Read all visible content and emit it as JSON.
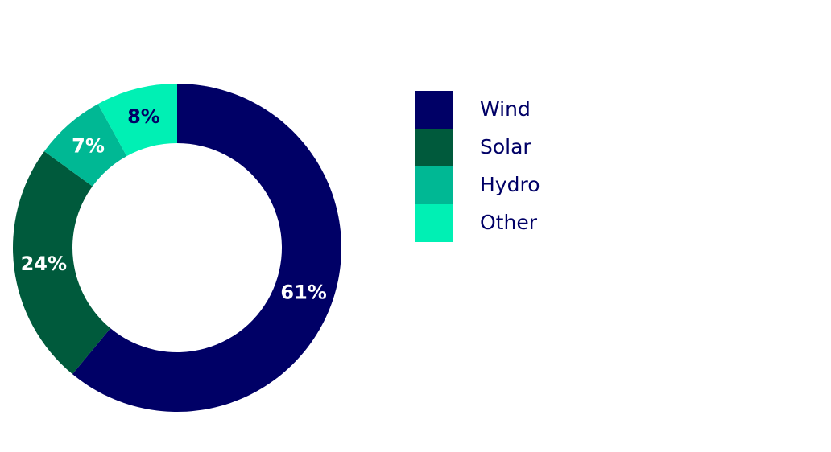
{
  "chart_data": {
    "type": "donut",
    "categories": [
      "Wind",
      "Solar",
      "Hydro",
      "Other"
    ],
    "values": [
      61,
      24,
      7,
      8
    ],
    "value_labels": [
      "61%",
      "24%",
      "7%",
      "8%"
    ],
    "colors": [
      "#000066",
      "#005a3c",
      "#00b894",
      "#00f0b4"
    ]
  }
}
